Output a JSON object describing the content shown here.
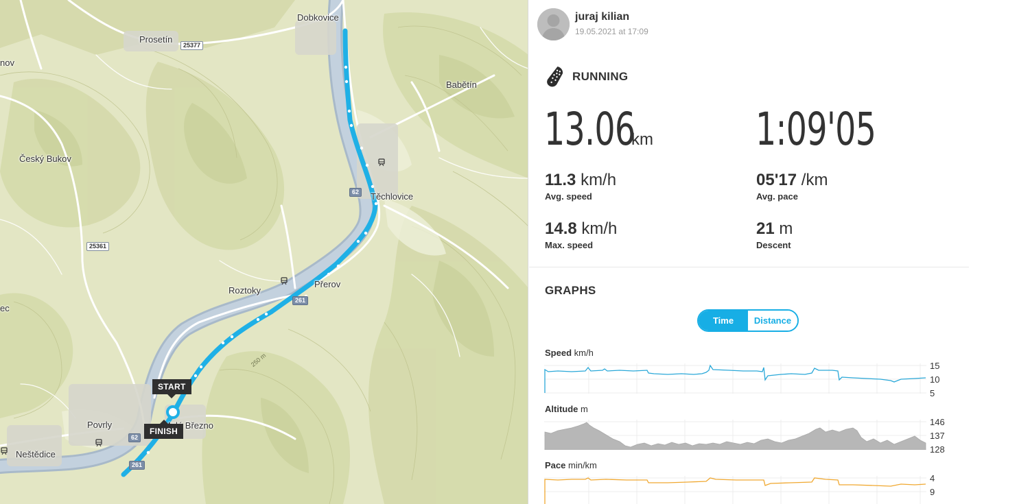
{
  "map": {
    "places": [
      {
        "name": "Dobkovice",
        "key": "dobkovice"
      },
      {
        "name": "Prosetín",
        "key": "prosetin"
      },
      {
        "name": "nov",
        "key": "nov"
      },
      {
        "name": "Babětín",
        "key": "babetin"
      },
      {
        "name": "Český Bukov",
        "key": "cesky-bukov"
      },
      {
        "name": "Těchlovice",
        "key": "techlovice"
      },
      {
        "name": "Roztoky",
        "key": "roztoky"
      },
      {
        "name": "Přerov",
        "key": "prerov"
      },
      {
        "name": "ec",
        "key": "ec"
      },
      {
        "name": "Povrly",
        "key": "povrly"
      },
      {
        "name": "Neštědice",
        "key": "nestedice"
      },
      {
        "name": "Malé Březno",
        "key": "male-brezno"
      }
    ],
    "roads": {
      "r25377": "25377",
      "r25361": "25361",
      "r62a": "62",
      "r62b": "62",
      "r261a": "261",
      "r261b": "261"
    },
    "contour": "250 m",
    "start_label": "START",
    "finish_label": "FINISH",
    "route_color": "#1fb0e6"
  },
  "user": {
    "name": "juraj kilian",
    "date": "19.05.2021 at 17:09"
  },
  "activity": {
    "sport_icon": "running-shoe-icon",
    "sport": "RUNNING",
    "distance": "13.06",
    "distance_unit": "km",
    "duration": "1:09'05",
    "avg_speed": "11.3",
    "avg_speed_unit": "km/h",
    "avg_speed_label": "Avg. speed",
    "avg_pace": "05'17",
    "avg_pace_unit": "/km",
    "avg_pace_label": "Avg. pace",
    "max_speed": "14.8",
    "max_speed_unit": "km/h",
    "max_speed_label": "Max. speed",
    "descent": "21",
    "descent_unit": "m",
    "descent_label": "Descent"
  },
  "graphs": {
    "title": "GRAPHS",
    "toggle": {
      "time": "Time",
      "distance": "Distance",
      "selected": "Time"
    },
    "speed": {
      "label": "Speed",
      "unit": "km/h",
      "ticks": [
        "15",
        "10",
        "5"
      ],
      "color": "#2aa8d8"
    },
    "altitude": {
      "label": "Altitude",
      "unit": "m",
      "ticks": [
        "146",
        "137",
        "128"
      ],
      "color": "#b7b7b7"
    },
    "pace": {
      "label": "Pace",
      "unit": "min/km",
      "ticks": [
        "4",
        "9"
      ],
      "color": "#f0a830"
    }
  }
}
